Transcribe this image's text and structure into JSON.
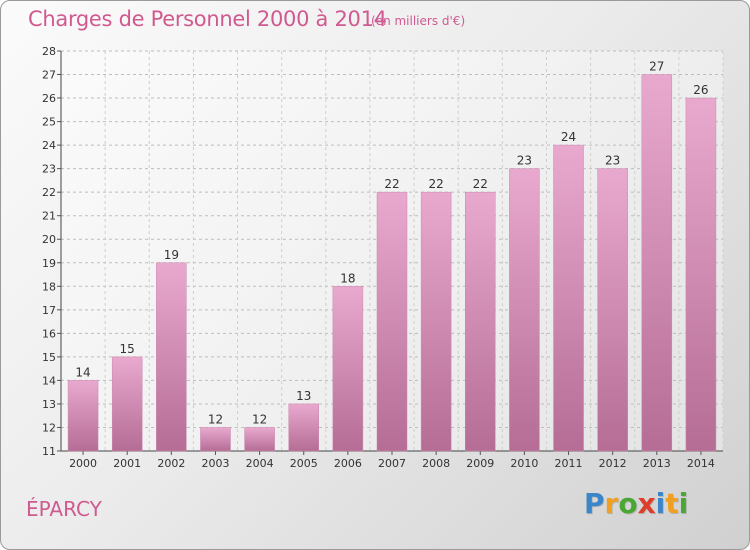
{
  "header": {
    "title": "Charges de Personnel 2000 à 2014",
    "unit": "(en milliers d'€)"
  },
  "footer": {
    "commune": "ÉPARCY",
    "brand_letters": [
      {
        "char": "P",
        "color": "#3a86c8"
      },
      {
        "char": "r",
        "color": "#f0a020"
      },
      {
        "char": "o",
        "color": "#4aa832"
      },
      {
        "char": "x",
        "color": "#e03c2a"
      },
      {
        "char": "i",
        "color": "#3a86c8"
      },
      {
        "char": "t",
        "color": "#f0a020"
      },
      {
        "char": "i",
        "color": "#4aa832"
      }
    ]
  },
  "colors": {
    "bar_light": "#e9a9cf",
    "bar_dark": "#b56d95",
    "title": "#d05a90"
  },
  "chart_data": {
    "type": "bar",
    "title": "Charges de Personnel 2000 à 2014",
    "subtitle": "(en milliers d'€)",
    "xlabel": "",
    "ylabel": "",
    "categories": [
      "2000",
      "2001",
      "2002",
      "2003",
      "2004",
      "2005",
      "2006",
      "2007",
      "2008",
      "2009",
      "2010",
      "2011",
      "2012",
      "2013",
      "2014"
    ],
    "values": [
      14,
      15,
      19,
      12,
      12,
      13,
      18,
      22,
      22,
      22,
      23,
      24,
      23,
      27,
      26
    ],
    "ylim": [
      11,
      28
    ],
    "yticks": [
      11,
      12,
      13,
      14,
      15,
      16,
      17,
      18,
      19,
      20,
      21,
      22,
      23,
      24,
      25,
      26,
      27,
      28
    ],
    "grid": true,
    "legend": "none"
  }
}
